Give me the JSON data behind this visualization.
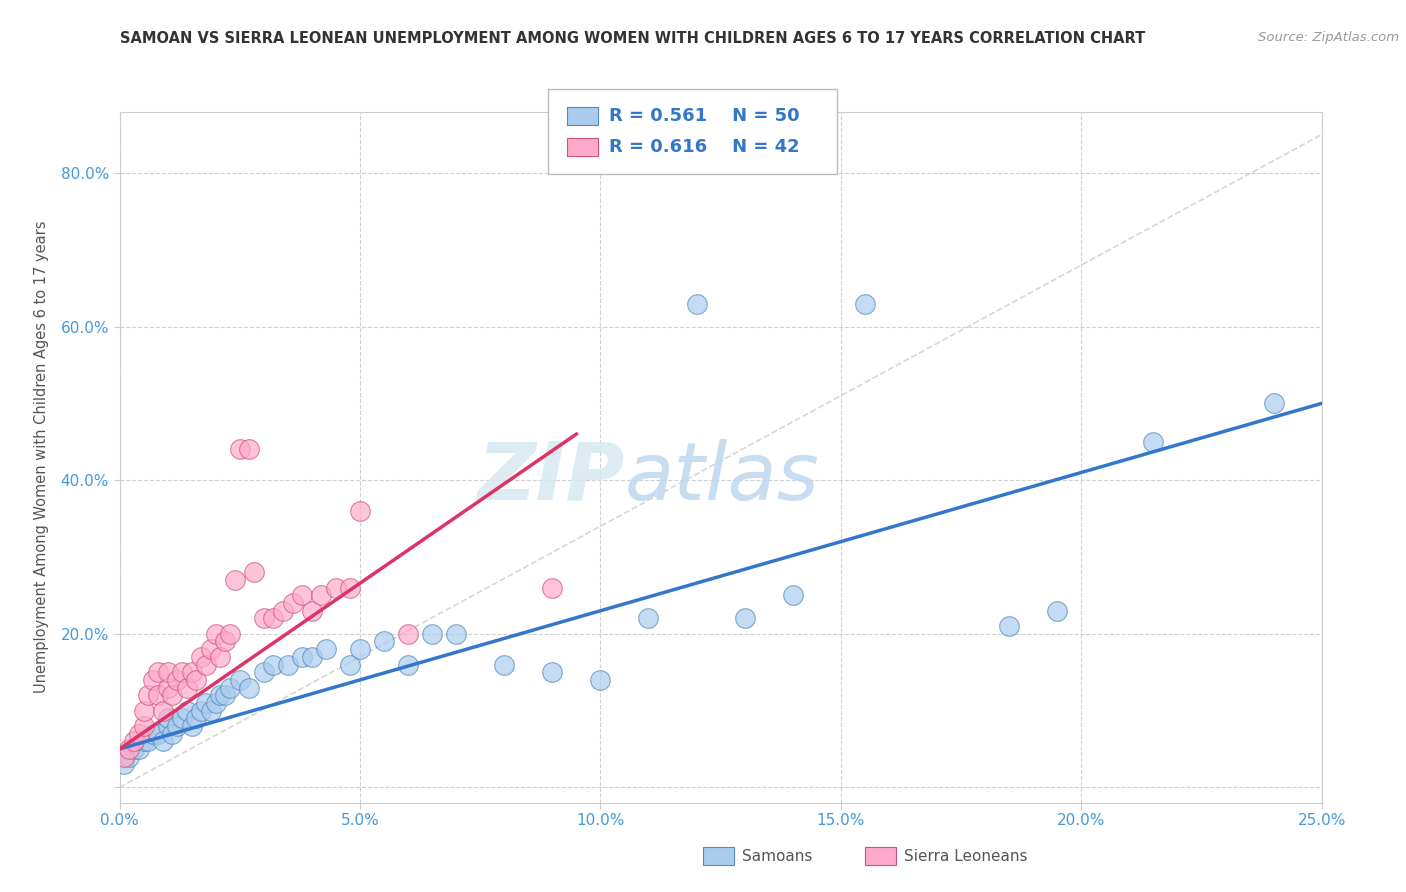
{
  "title": "SAMOAN VS SIERRA LEONEAN UNEMPLOYMENT AMONG WOMEN WITH CHILDREN AGES 6 TO 17 YEARS CORRELATION CHART",
  "source": "Source: ZipAtlas.com",
  "ylabel": "Unemployment Among Women with Children Ages 6 to 17 years",
  "xlim": [
    0.0,
    0.25
  ],
  "ylim": [
    -0.02,
    0.88
  ],
  "xtick_labels": [
    "0.0%",
    "5.0%",
    "10.0%",
    "15.0%",
    "20.0%",
    "25.0%"
  ],
  "xtick_vals": [
    0.0,
    0.05,
    0.1,
    0.15,
    0.2,
    0.25
  ],
  "ytick_labels": [
    "",
    "20.0%",
    "40.0%",
    "60.0%",
    "80.0%"
  ],
  "ytick_vals": [
    0.0,
    0.2,
    0.4,
    0.6,
    0.8
  ],
  "watermark": "ZIPatlas",
  "bg_color": "#ffffff",
  "plot_bg_color": "#ffffff",
  "grid_color": "#d0d0d0",
  "samoans_color": "#aaccee",
  "samoans_edge_color": "#5588bb",
  "sierra_color": "#ffaacc",
  "sierra_edge_color": "#cc5577",
  "blue_line_color": "#3377cc",
  "pink_line_color": "#dd3366",
  "ref_line_color": "#cccccc",
  "legend_r1": "R = 0.561",
  "legend_n1": "N = 50",
  "legend_r2": "R = 0.616",
  "legend_n2": "N = 42",
  "legend_label1": "Samoans",
  "legend_label2": "Sierra Leoneans",
  "samoans_x": [
    0.001,
    0.002,
    0.003,
    0.004,
    0.005,
    0.006,
    0.007,
    0.008,
    0.009,
    0.01,
    0.01,
    0.011,
    0.012,
    0.013,
    0.014,
    0.015,
    0.016,
    0.017,
    0.018,
    0.019,
    0.02,
    0.021,
    0.022,
    0.023,
    0.025,
    0.027,
    0.03,
    0.032,
    0.035,
    0.038,
    0.04,
    0.043,
    0.048,
    0.05,
    0.055,
    0.06,
    0.065,
    0.07,
    0.08,
    0.09,
    0.1,
    0.11,
    0.12,
    0.13,
    0.14,
    0.155,
    0.185,
    0.195,
    0.215,
    0.24
  ],
  "samoans_y": [
    0.03,
    0.04,
    0.05,
    0.05,
    0.06,
    0.06,
    0.07,
    0.07,
    0.06,
    0.08,
    0.09,
    0.07,
    0.08,
    0.09,
    0.1,
    0.08,
    0.09,
    0.1,
    0.11,
    0.1,
    0.11,
    0.12,
    0.12,
    0.13,
    0.14,
    0.13,
    0.15,
    0.16,
    0.16,
    0.17,
    0.17,
    0.18,
    0.16,
    0.18,
    0.19,
    0.16,
    0.2,
    0.2,
    0.16,
    0.15,
    0.14,
    0.22,
    0.63,
    0.22,
    0.25,
    0.63,
    0.21,
    0.23,
    0.45,
    0.5
  ],
  "sierra_x": [
    0.001,
    0.002,
    0.003,
    0.004,
    0.005,
    0.005,
    0.006,
    0.007,
    0.008,
    0.008,
    0.009,
    0.01,
    0.01,
    0.011,
    0.012,
    0.013,
    0.014,
    0.015,
    0.016,
    0.017,
    0.018,
    0.019,
    0.02,
    0.021,
    0.022,
    0.023,
    0.024,
    0.025,
    0.027,
    0.028,
    0.03,
    0.032,
    0.034,
    0.036,
    0.038,
    0.04,
    0.042,
    0.045,
    0.048,
    0.05,
    0.06,
    0.09
  ],
  "sierra_y": [
    0.04,
    0.05,
    0.06,
    0.07,
    0.08,
    0.1,
    0.12,
    0.14,
    0.12,
    0.15,
    0.1,
    0.13,
    0.15,
    0.12,
    0.14,
    0.15,
    0.13,
    0.15,
    0.14,
    0.17,
    0.16,
    0.18,
    0.2,
    0.17,
    0.19,
    0.2,
    0.27,
    0.44,
    0.44,
    0.28,
    0.22,
    0.22,
    0.23,
    0.24,
    0.25,
    0.23,
    0.25,
    0.26,
    0.26,
    0.36,
    0.2,
    0.26
  ],
  "blue_line_x0": 0.0,
  "blue_line_y0": 0.05,
  "blue_line_x1": 0.25,
  "blue_line_y1": 0.5,
  "pink_line_x0": 0.0,
  "pink_line_y0": 0.05,
  "pink_line_x1": 0.095,
  "pink_line_y1": 0.46
}
